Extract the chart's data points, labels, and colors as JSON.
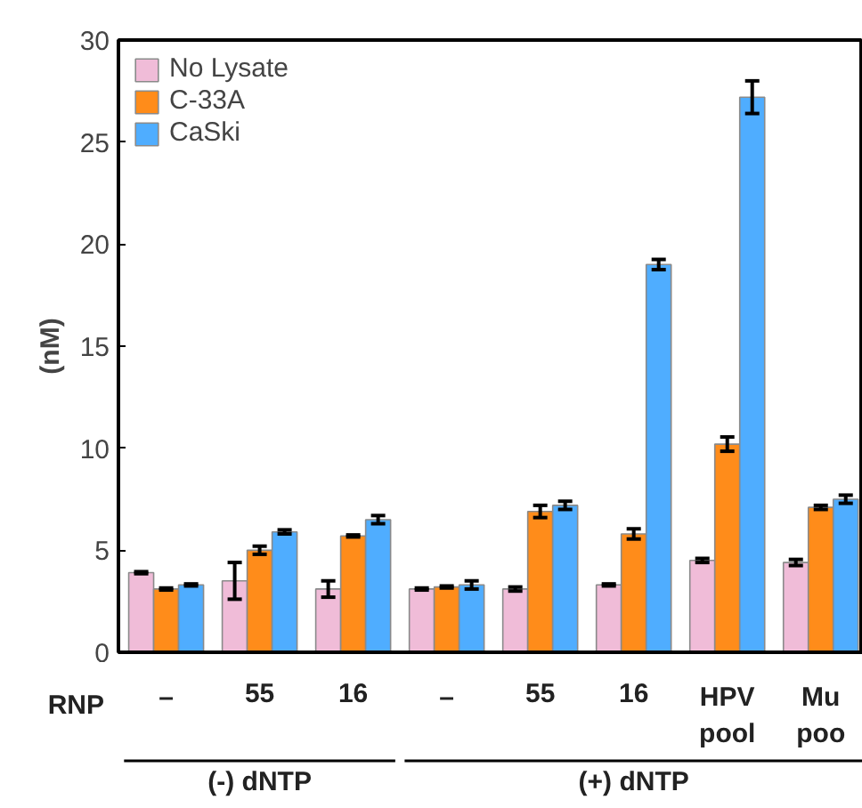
{
  "chart_data": {
    "type": "bar",
    "ylabel": "(nM)",
    "xlabel": "RNP",
    "categories": [
      "–",
      "55",
      "16",
      "–",
      "55",
      "16",
      "HPV\npool",
      "Mu\npoo"
    ],
    "series": [
      {
        "name": "No Lysate",
        "color": "#f0bcd8",
        "values": [
          3.9,
          3.5,
          3.1,
          3.1,
          3.1,
          3.3,
          4.5,
          4.4
        ],
        "errors": [
          0.05,
          0.9,
          0.4,
          0.05,
          0.1,
          0.05,
          0.1,
          0.15
        ]
      },
      {
        "name": "C-33A",
        "color": "#ff8c1a",
        "values": [
          3.1,
          5.0,
          5.7,
          3.2,
          6.9,
          5.8,
          10.2,
          7.1
        ],
        "errors": [
          0.05,
          0.2,
          0.05,
          0.05,
          0.3,
          0.25,
          0.35,
          0.1
        ]
      },
      {
        "name": "CaSki",
        "color": "#4fadff",
        "values": [
          3.3,
          5.9,
          6.5,
          3.3,
          7.2,
          19.0,
          27.2,
          7.5
        ],
        "errors": [
          0.05,
          0.1,
          0.2,
          0.2,
          0.2,
          0.25,
          0.8,
          0.2
        ]
      }
    ],
    "ylim": [
      0,
      30
    ],
    "yticks": [
      0,
      5,
      10,
      15,
      20,
      25,
      30
    ],
    "grid": false,
    "legend": "top left",
    "annotations": [
      "(-) dNTP",
      "(+) dNTP"
    ]
  }
}
